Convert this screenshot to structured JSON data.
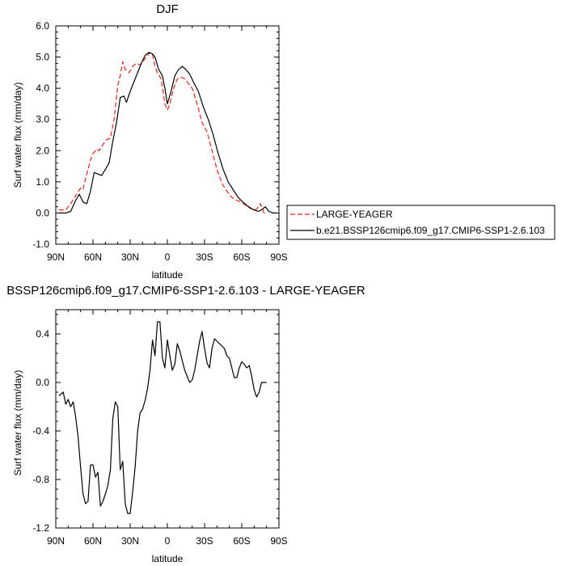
{
  "chart_data": [
    {
      "type": "line",
      "title": "DJF",
      "xlabel": "latitude",
      "ylabel": "Surf water flux (mm/day)",
      "xlim": [
        90,
        -90
      ],
      "ylim": [
        -1.0,
        6.0
      ],
      "xticks": [
        90,
        60,
        30,
        0,
        -30,
        -60,
        -90
      ],
      "xtick_labels": [
        "90N",
        "60N",
        "30N",
        "0",
        "30S",
        "60S",
        "90S"
      ],
      "yticks": [
        -1.0,
        0.0,
        1.0,
        2.0,
        3.0,
        4.0,
        5.0,
        6.0
      ],
      "ytick_labels": [
        "-1.0",
        "0.0",
        "1.0",
        "2.0",
        "3.0",
        "4.0",
        "5.0",
        "6.0"
      ],
      "grid": false,
      "legend_position": "right",
      "series": [
        {
          "name": "LARGE-YEAGER",
          "color": "#e8231f",
          "dash": "6,3",
          "x": [
            87.5,
            82,
            78,
            74,
            70,
            68,
            66,
            64,
            62,
            60,
            57,
            55,
            52,
            49,
            46,
            43,
            40,
            38,
            36,
            34,
            31,
            28,
            25,
            22,
            19,
            16,
            14,
            12,
            10,
            8,
            5,
            2,
            0,
            -2,
            -5,
            -8,
            -11,
            -14,
            -17,
            -20,
            -24,
            -28,
            -32,
            -36,
            -40,
            -44,
            -48,
            -52,
            -56,
            -60,
            -63,
            -66,
            -69,
            -72,
            -75,
            -78,
            -80
          ],
          "y": [
            0.1,
            0.1,
            0.3,
            0.55,
            0.8,
            0.75,
            1.1,
            1.4,
            1.7,
            1.9,
            2.05,
            2.0,
            2.2,
            2.35,
            2.4,
            3.0,
            4.1,
            4.4,
            4.85,
            4.6,
            4.5,
            4.7,
            4.8,
            4.75,
            4.9,
            5.05,
            5.15,
            5.1,
            4.7,
            4.5,
            4.3,
            3.5,
            3.3,
            3.5,
            4.0,
            4.3,
            4.35,
            4.3,
            4.15,
            4.0,
            3.5,
            2.9,
            2.6,
            2.0,
            1.4,
            0.95,
            0.7,
            0.5,
            0.4,
            0.35,
            0.25,
            0.2,
            0.1,
            0.12,
            0.3,
            0.0,
            0.0
          ]
        },
        {
          "name": "b.e21.BSSP126cmip6.f09_g17.CMIP6-SSP1-2.6.103",
          "color": "#000000",
          "dash": "",
          "x": [
            87.5,
            82,
            78,
            74,
            71,
            68,
            65,
            62,
            59,
            56,
            53,
            50,
            47,
            44,
            41,
            38,
            35,
            33,
            30,
            27,
            24,
            21,
            18,
            15,
            12,
            10,
            7,
            4,
            2,
            0,
            -3,
            -6,
            -9,
            -12,
            -15,
            -18,
            -21,
            -25,
            -29,
            -33,
            -37,
            -41,
            -45,
            -49,
            -53,
            -57,
            -61,
            -64,
            -67,
            -70,
            -73,
            -76,
            -79,
            -82,
            -85,
            -87.5
          ],
          "y": [
            0.0,
            0.0,
            0.05,
            0.4,
            0.6,
            0.35,
            0.3,
            0.7,
            1.3,
            1.25,
            1.2,
            1.4,
            1.6,
            2.3,
            2.9,
            3.7,
            3.75,
            3.55,
            3.9,
            4.2,
            4.5,
            4.8,
            5.05,
            5.15,
            5.1,
            5.0,
            4.6,
            4.4,
            4.0,
            3.5,
            3.9,
            4.4,
            4.6,
            4.7,
            4.6,
            4.45,
            4.2,
            3.9,
            3.4,
            3.0,
            2.5,
            1.9,
            1.4,
            1.0,
            0.75,
            0.5,
            0.35,
            0.25,
            0.15,
            0.1,
            0.05,
            0.1,
            0.2,
            0.05,
            0.0,
            0.0
          ]
        }
      ]
    },
    {
      "type": "line",
      "title": "BSSP126cmip6.f09_g17.CMIP6-SSP1-2.6.103 - LARGE-YEAGER",
      "xlabel": "latitude",
      "ylabel": "Surf water flux (mm/day)",
      "xlim": [
        90,
        -90
      ],
      "ylim": [
        -1.2,
        0.6
      ],
      "xticks": [
        90,
        60,
        30,
        0,
        -30,
        -60,
        -90
      ],
      "xtick_labels": [
        "90N",
        "60N",
        "30N",
        "0",
        "30S",
        "60S",
        "90S"
      ],
      "yticks": [
        -1.2,
        -0.8,
        -0.4,
        0.0,
        0.4
      ],
      "ytick_labels": [
        "-1.2",
        "-0.8",
        "-0.4",
        "0.0",
        "0.4"
      ],
      "grid": false,
      "series": [
        {
          "color": "#000000",
          "x": [
            87.5,
            84,
            82,
            80,
            78,
            76,
            74,
            72,
            70,
            68,
            66,
            64,
            62,
            60,
            58,
            56,
            54,
            52,
            50,
            48,
            46,
            44,
            42,
            40,
            38,
            36,
            34,
            32,
            30,
            28,
            26,
            24,
            22,
            20,
            18,
            16,
            14,
            12,
            10,
            8,
            6,
            4,
            2,
            0,
            -2,
            -4,
            -6,
            -8,
            -10,
            -12,
            -14,
            -16,
            -18,
            -20,
            -22,
            -24,
            -26,
            -28,
            -30,
            -32,
            -34,
            -36,
            -38,
            -40,
            -42,
            -44,
            -46,
            -48,
            -50,
            -52,
            -54,
            -56,
            -58,
            -60,
            -62,
            -64,
            -66,
            -68,
            -70,
            -72,
            -74,
            -76,
            -78,
            -80
          ],
          "y": [
            -0.11,
            -0.08,
            -0.18,
            -0.14,
            -0.2,
            -0.16,
            -0.28,
            -0.45,
            -0.7,
            -0.92,
            -1.0,
            -0.98,
            -0.68,
            -0.68,
            -0.78,
            -0.74,
            -1.02,
            -0.98,
            -0.92,
            -0.85,
            -0.72,
            -0.3,
            -0.16,
            -0.2,
            -0.72,
            -0.65,
            -1.0,
            -1.08,
            -1.08,
            -0.9,
            -0.7,
            -0.4,
            -0.25,
            -0.22,
            -0.15,
            -0.05,
            0.1,
            0.35,
            0.22,
            0.5,
            0.5,
            0.2,
            0.12,
            0.35,
            0.22,
            0.1,
            0.15,
            0.32,
            0.26,
            0.18,
            0.1,
            0.05,
            0.0,
            0.02,
            0.1,
            0.22,
            0.34,
            0.42,
            0.28,
            0.16,
            0.12,
            0.28,
            0.36,
            0.34,
            0.32,
            0.3,
            0.28,
            0.22,
            0.2,
            0.12,
            0.04,
            0.04,
            0.12,
            0.17,
            0.15,
            0.12,
            0.14,
            0.05,
            -0.06,
            -0.12,
            -0.08,
            0.0,
            0.0,
            0.0
          ]
        }
      ]
    }
  ],
  "legend": {
    "entries": [
      {
        "label": "LARGE-YEAGER",
        "series_index": 0
      },
      {
        "label": "b.e21.BSSP126cmip6.f09_g17.CMIP6-SSP1-2.6.103",
        "series_index": 1
      }
    ]
  }
}
